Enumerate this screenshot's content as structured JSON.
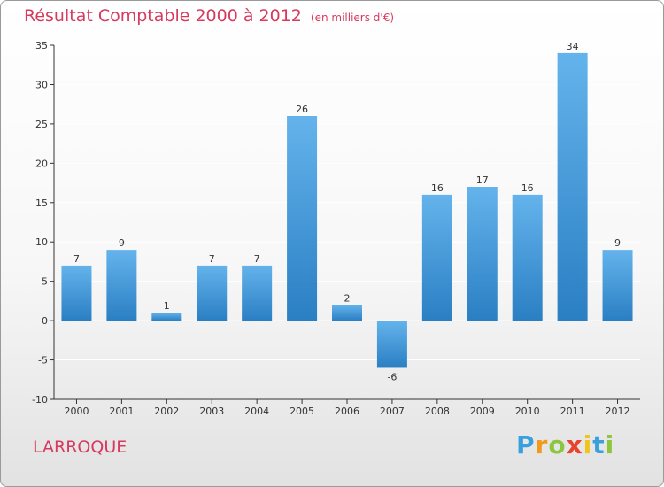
{
  "title": "Résultat Comptable 2000 à 2012",
  "subtitle": "(en milliers d'€)",
  "commune": "LARROQUE",
  "brand": {
    "letters": [
      "P",
      "r",
      "o",
      "x",
      "i",
      "t",
      "i"
    ],
    "colors": [
      "#3aa0dd",
      "#f29a1b",
      "#8cc63f",
      "#e8432e",
      "#f2c318",
      "#3aa0dd",
      "#8cc63f"
    ]
  },
  "colors": {
    "bar_light": "#64b3ec",
    "bar_dark": "#2a7fc3",
    "axis": "#333333",
    "gridline": "#ffffff"
  },
  "chart_data": {
    "type": "bar",
    "title": "Résultat Comptable 2000 à 2012",
    "subtitle": "(en milliers d'€)",
    "xlabel": "",
    "ylabel": "",
    "categories": [
      "2000",
      "2001",
      "2002",
      "2003",
      "2004",
      "2005",
      "2006",
      "2007",
      "2008",
      "2009",
      "2010",
      "2011",
      "2012"
    ],
    "values": [
      7,
      9,
      1,
      7,
      7,
      26,
      2,
      -6,
      16,
      17,
      16,
      34,
      9
    ],
    "ylim": [
      -10,
      35
    ],
    "yticks": [
      -10,
      -5,
      0,
      5,
      10,
      15,
      20,
      25,
      30,
      35
    ],
    "grid": true
  }
}
